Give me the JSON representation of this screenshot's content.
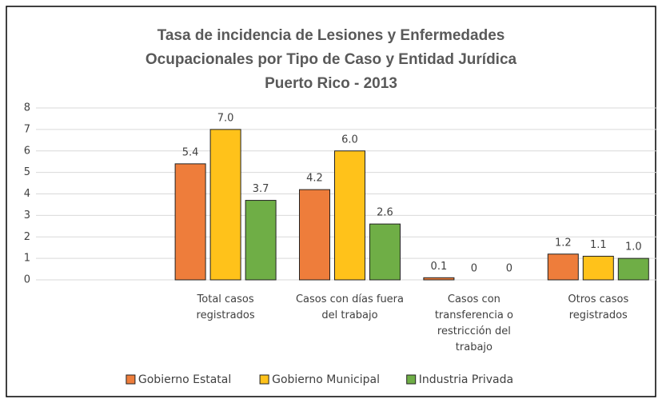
{
  "chart_data": {
    "type": "bar",
    "title": [
      "Tasa de incidencia de Lesiones y Enfermedades",
      "Ocupacionales por Tipo de Caso y Entidad Jurídica",
      "Puerto Rico - 2013"
    ],
    "categories": [
      null,
      "Total casos registrados",
      "Casos con días fuera del trabajo",
      "Casos con transferencia o restricción del trabajo",
      "Otros casos registrados"
    ],
    "series": [
      {
        "name": "Gobierno Estatal",
        "color": "#ee7d3b",
        "values": [
          null,
          5.4,
          4.2,
          0.1,
          1.2
        ],
        "value_labels": [
          null,
          "5.4",
          "4.2",
          "0.1",
          "1.2"
        ]
      },
      {
        "name": "Gobierno Municipal",
        "color": "#ffc21a",
        "values": [
          null,
          7.0,
          6.0,
          0,
          1.1
        ],
        "value_labels": [
          null,
          "7.0",
          "6.0",
          "0",
          "1.1"
        ]
      },
      {
        "name": "Industria Privada",
        "color": "#6fae46",
        "values": [
          null,
          3.7,
          2.6,
          0,
          1.0
        ],
        "value_labels": [
          null,
          "3.7",
          "2.6",
          "0",
          "1.0"
        ]
      }
    ],
    "ylim": [
      0,
      8
    ],
    "yticks": [
      0,
      1,
      2,
      3,
      4,
      5,
      6,
      7,
      8
    ],
    "grid": true,
    "legend": "bottom"
  }
}
